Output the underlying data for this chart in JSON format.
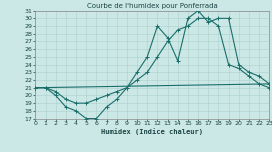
{
  "title": "Courbe de l'humidex pour Ponferrada",
  "xlabel": "Humidex (Indice chaleur)",
  "bg_color": "#cce8e6",
  "grid_color": "#aacfcc",
  "line_color": "#1a6e6a",
  "xlim": [
    0,
    23
  ],
  "ylim": [
    17,
    31
  ],
  "xticks": [
    0,
    1,
    2,
    3,
    4,
    5,
    6,
    7,
    8,
    9,
    10,
    11,
    12,
    13,
    14,
    15,
    16,
    17,
    18,
    19,
    20,
    21,
    22,
    23
  ],
  "yticks": [
    17,
    18,
    19,
    20,
    21,
    22,
    23,
    24,
    25,
    26,
    27,
    28,
    29,
    30,
    31
  ],
  "line1_x": [
    0,
    1,
    2,
    3,
    4,
    5,
    6,
    7,
    8,
    9,
    10,
    11,
    12,
    13,
    14,
    15,
    16,
    17,
    18,
    19,
    20,
    21,
    22,
    23
  ],
  "line1_y": [
    21,
    21,
    20,
    18.5,
    18,
    17.0,
    17.0,
    18.5,
    19.5,
    21.0,
    23,
    25,
    29,
    27.5,
    24.5,
    30,
    31,
    29.5,
    30,
    30,
    24,
    23,
    22.5,
    21.5
  ],
  "line2_x": [
    0,
    1,
    2,
    3,
    4,
    5,
    6,
    7,
    8,
    9,
    10,
    11,
    12,
    13,
    14,
    15,
    16,
    17,
    18,
    19,
    20,
    21,
    22,
    23
  ],
  "line2_y": [
    21,
    21,
    20.5,
    19.5,
    19,
    19,
    19.5,
    20,
    20.5,
    21,
    22,
    23,
    25,
    27,
    28.5,
    29,
    30,
    30,
    29,
    24,
    23.5,
    22.5,
    21.5,
    21
  ],
  "line3_x": [
    0,
    23
  ],
  "line3_y": [
    21,
    21.5
  ]
}
